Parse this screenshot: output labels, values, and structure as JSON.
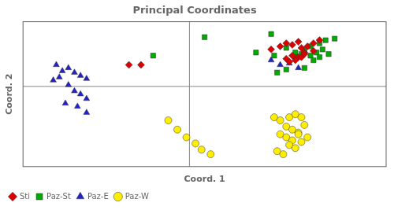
{
  "chart_data": {
    "type": "scatter",
    "title": "Principal Coordinates",
    "x_label": "Coord. 1",
    "y_label": "Coord. 2",
    "xlim": [
      -0.55,
      0.65
    ],
    "ylim": [
      -0.52,
      0.42
    ],
    "axhline": 0.0,
    "axvline": 0.0,
    "grid": false,
    "tick_labels": false,
    "legend": "lower left",
    "series": [
      {
        "name": "Sti",
        "color": "#dd0000",
        "marker": "diamond",
        "x": [
          -0.2,
          -0.16,
          0.27,
          0.3,
          0.32,
          0.34,
          0.36,
          0.37,
          0.39,
          0.41,
          0.43,
          0.38,
          0.34,
          0.32,
          0.36,
          0.38,
          0.41,
          0.33,
          0.35,
          0.37
        ],
        "values": [
          0.14,
          0.14,
          0.24,
          0.26,
          0.28,
          0.27,
          0.29,
          0.25,
          0.26,
          0.28,
          0.3,
          0.22,
          0.2,
          0.18,
          0.19,
          0.21,
          0.23,
          0.16,
          0.17,
          0.19
        ]
      },
      {
        "name": "Paz-St",
        "color": "#00aa00",
        "marker": "square",
        "x": [
          -0.12,
          0.05,
          0.22,
          0.27,
          0.28,
          0.32,
          0.35,
          0.38,
          0.4,
          0.43,
          0.45,
          0.48,
          0.35,
          0.37,
          0.4,
          0.42,
          0.44,
          0.41,
          0.43,
          0.46,
          0.38,
          0.32,
          0.29
        ],
        "values": [
          0.2,
          0.32,
          0.22,
          0.34,
          0.2,
          0.25,
          0.22,
          0.24,
          0.26,
          0.28,
          0.3,
          0.31,
          0.19,
          0.21,
          0.2,
          0.22,
          0.24,
          0.17,
          0.19,
          0.21,
          0.12,
          0.11,
          0.09
        ]
      },
      {
        "name": "Paz-E",
        "color": "#2222cc",
        "marker": "triangle",
        "x": [
          -0.44,
          -0.42,
          -0.4,
          -0.43,
          -0.45,
          -0.38,
          -0.36,
          -0.34,
          -0.4,
          -0.38,
          -0.36,
          -0.34,
          -0.41,
          -0.37,
          -0.34,
          0.27,
          0.3,
          0.33,
          0.36
        ],
        "values": [
          0.14,
          0.1,
          0.12,
          0.06,
          0.04,
          0.09,
          0.07,
          0.05,
          0.01,
          -0.03,
          -0.05,
          -0.08,
          -0.11,
          -0.13,
          -0.17,
          0.17,
          0.14,
          0.15,
          0.12
        ]
      },
      {
        "name": "Paz-W",
        "color": "#ffee00",
        "marker": "circle",
        "x": [
          -0.07,
          -0.04,
          -0.01,
          0.02,
          0.04,
          0.07,
          0.28,
          0.3,
          0.33,
          0.35,
          0.37,
          0.32,
          0.34,
          0.36,
          0.38,
          0.3,
          0.32,
          0.34,
          0.36,
          0.33,
          0.35,
          0.37,
          0.39,
          0.29,
          0.31
        ],
        "values": [
          -0.22,
          -0.28,
          -0.33,
          -0.37,
          -0.41,
          -0.44,
          -0.2,
          -0.22,
          -0.2,
          -0.18,
          -0.2,
          -0.26,
          -0.28,
          -0.3,
          -0.25,
          -0.31,
          -0.33,
          -0.35,
          -0.31,
          -0.38,
          -0.4,
          -0.36,
          -0.33,
          -0.42,
          -0.44
        ]
      }
    ]
  }
}
